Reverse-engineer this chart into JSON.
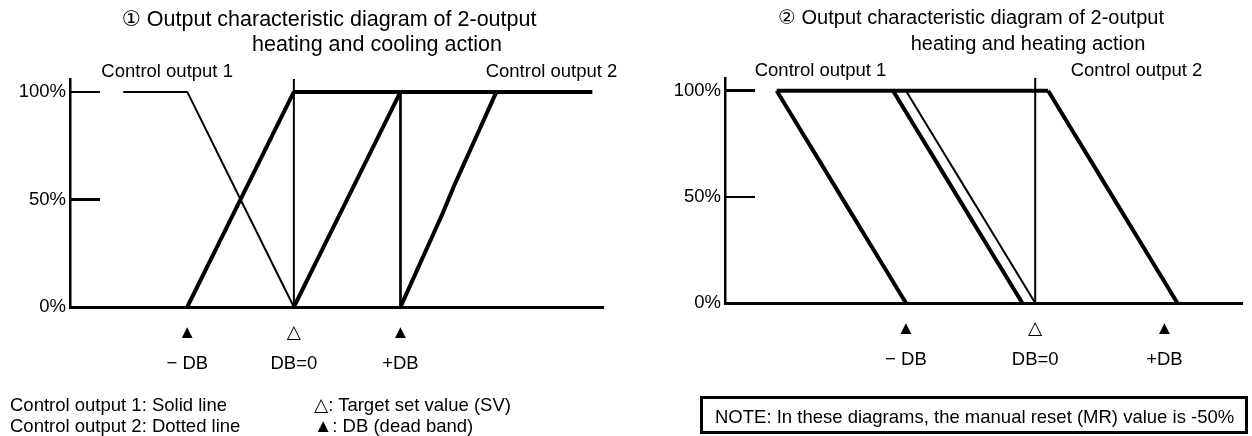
{
  "chart_data": [
    {
      "type": "line",
      "title": "① Output characteristic diagram of 2-output heating and cooling action",
      "categories": [
        null,
        null,
        null,
        null,
        null,
        null,
        null,
        null,
        null,
        null,
        null,
        "▲\n− DB",
        null,
        null,
        null,
        null,
        null,
        null,
        null,
        null,
        null,
        "△\nDB=0",
        null,
        null,
        null,
        null,
        null,
        null,
        null,
        null,
        null,
        "▲\n+DB",
        null,
        null,
        null,
        null,
        null,
        null,
        null,
        null,
        null,
        null,
        null,
        null,
        null,
        null,
        null,
        null,
        null,
        null,
        null
      ],
      "ylim": [
        0,
        106
      ],
      "yticks": [
        {
          "value": 0,
          "label": "0%"
        },
        {
          "value": 50,
          "label": "50%"
        },
        {
          "value": 100,
          "label": "100%"
        }
      ],
      "series": [
        {
          "name": "Control output 1",
          "color": "#000000",
          "values": [
            null,
            null,
            null,
            null,
            null,
            100,
            100,
            100,
            100,
            100,
            100,
            100,
            90,
            80,
            70,
            60,
            50,
            40,
            30,
            20,
            10,
            0,
            null,
            null,
            null,
            null,
            null,
            null,
            null,
            null,
            null,
            null,
            null,
            null,
            null,
            null,
            null,
            null,
            null,
            null,
            null,
            null,
            null,
            null,
            null,
            null,
            null,
            null,
            null,
            null,
            null
          ]
        },
        {
          "name": "Control output 2",
          "color": "#000000",
          "values": [
            null,
            null,
            null,
            null,
            null,
            null,
            null,
            null,
            null,
            null,
            null,
            null,
            null,
            null,
            null,
            null,
            null,
            null,
            null,
            null,
            null,
            100,
            100,
            100,
            100,
            100,
            100,
            100,
            100,
            100,
            100,
            100,
            100,
            100,
            100,
            100,
            100,
            100,
            100,
            100,
            100,
            100,
            100,
            100,
            100,
            100,
            100,
            100,
            100,
            100,
            null
          ]
        },
        {
          "color": "#000000",
          "values": [
            null,
            null,
            null,
            null,
            null,
            null,
            null,
            null,
            null,
            null,
            null,
            0,
            10,
            20,
            30,
            40,
            50,
            60,
            70,
            80,
            90,
            100,
            null,
            null,
            null,
            null,
            null,
            null,
            null,
            null,
            null,
            null,
            null,
            null,
            null,
            null,
            null,
            null,
            null,
            null,
            null,
            null,
            null,
            null,
            null,
            null,
            null,
            null,
            null,
            null,
            null
          ]
        },
        {
          "color": "#000000",
          "values": [
            null,
            null,
            null,
            null,
            null,
            null,
            null,
            null,
            null,
            null,
            null,
            null,
            null,
            null,
            null,
            null,
            null,
            null,
            null,
            null,
            null,
            0,
            10,
            20,
            30,
            40,
            50,
            60,
            70,
            80,
            90,
            100,
            null,
            null,
            null,
            null,
            null,
            null,
            null,
            null,
            null,
            null,
            null,
            null,
            null,
            null,
            null,
            null,
            null,
            null,
            null
          ]
        },
        {
          "type": "bar",
          "color": "#000000",
          "values": [
            null,
            null,
            null,
            null,
            null,
            null,
            null,
            null,
            null,
            null,
            null,
            null,
            null,
            null,
            null,
            null,
            null,
            null,
            null,
            null,
            null,
            null,
            null,
            null,
            null,
            null,
            null,
            null,
            null,
            null,
            null,
            100,
            null,
            null,
            null,
            null,
            null,
            null,
            null,
            null,
            null,
            null,
            null,
            null,
            null,
            null,
            null,
            null,
            null,
            null,
            null
          ]
        },
        {
          "color": "#000000",
          "values": [
            null,
            null,
            null,
            null,
            null,
            null,
            null,
            null,
            null,
            null,
            null,
            null,
            null,
            null,
            null,
            null,
            null,
            null,
            null,
            null,
            null,
            null,
            null,
            null,
            null,
            null,
            null,
            null,
            null,
            null,
            null,
            0,
            11,
            22,
            33,
            44,
            56,
            67,
            78,
            89,
            100,
            null,
            null,
            null,
            null,
            null,
            null,
            null,
            null,
            null,
            null
          ]
        }
      ],
      "ref_lines": [
        {
          "axis": "x",
          "value": "△\nDB=0",
          "color": "#000000"
        }
      ],
      "annotations": [
        "Control output 1: Solid line",
        "Control output 2: Dotted line",
        "△: Target set value (SV)",
        "▲: DB (dead band)"
      ]
    },
    {
      "type": "line",
      "title": "② Output characteristic diagram of 2-output heating and heating action",
      "categories": [
        null,
        null,
        null,
        null,
        null,
        null,
        null,
        null,
        null,
        null,
        null,
        null,
        null,
        null,
        "▲\n− DB",
        null,
        null,
        null,
        null,
        null,
        null,
        null,
        null,
        null,
        "△\nDB=0",
        null,
        null,
        null,
        null,
        null,
        null,
        null,
        null,
        null,
        "▲\n+DB",
        null,
        null,
        null,
        null,
        null,
        null
      ],
      "ylim": [
        0,
        106
      ],
      "yticks": [
        {
          "value": 0,
          "label": "0%"
        },
        {
          "value": 50,
          "label": "50%"
        },
        {
          "value": 100,
          "label": "100%"
        }
      ],
      "series": [
        {
          "name": "Control output 1",
          "color": "#000000",
          "values": [
            null,
            null,
            null,
            null,
            100,
            90,
            80,
            70,
            60,
            50,
            40,
            30,
            20,
            10,
            0,
            null,
            null,
            null,
            null,
            null,
            null,
            null,
            null,
            null,
            null,
            null,
            null,
            null,
            null,
            null,
            null,
            null,
            null,
            null,
            null,
            null,
            null,
            null,
            null,
            null,
            null
          ]
        },
        {
          "color": "#000000",
          "values": [
            null,
            null,
            null,
            null,
            100,
            100,
            100,
            100,
            100,
            100,
            100,
            100,
            100,
            100,
            100,
            100,
            100,
            100,
            100,
            100,
            100,
            100,
            100,
            100,
            100,
            100,
            null,
            null,
            null,
            null,
            null,
            null,
            null,
            null,
            null,
            null,
            null,
            null,
            null,
            null,
            null
          ]
        },
        {
          "color": "#000000",
          "values": [
            null,
            null,
            null,
            null,
            null,
            null,
            null,
            null,
            null,
            null,
            null,
            null,
            null,
            100,
            90,
            80,
            70,
            60,
            50,
            40,
            30,
            20,
            10,
            0,
            null,
            null,
            null,
            null,
            null,
            null,
            null,
            null,
            null,
            null,
            null,
            null,
            null,
            null,
            null,
            null,
            null
          ]
        },
        {
          "color": "#000000",
          "values": [
            null,
            null,
            null,
            null,
            null,
            null,
            null,
            null,
            null,
            null,
            null,
            null,
            null,
            null,
            100,
            90,
            80,
            70,
            60,
            50,
            40,
            30,
            20,
            10,
            0,
            null,
            null,
            null,
            null,
            null,
            null,
            null,
            null,
            null,
            null,
            null,
            null,
            null,
            null,
            null,
            null
          ]
        },
        {
          "name": "Control output 2",
          "color": "#000000",
          "values": [
            null,
            null,
            null,
            null,
            null,
            null,
            null,
            null,
            null,
            null,
            null,
            null,
            null,
            null,
            null,
            null,
            null,
            null,
            null,
            null,
            null,
            null,
            null,
            null,
            null,
            100,
            90,
            80,
            70,
            60,
            50,
            40,
            30,
            20,
            10,
            0,
            null,
            null,
            null,
            null,
            null
          ]
        }
      ],
      "ref_lines": [
        {
          "axis": "x",
          "value": "△\nDB=0",
          "color": "#000000"
        }
      ],
      "annotations": [
        "NOTE: In these diagrams, the manual reset (MR) value is -50%"
      ]
    }
  ]
}
